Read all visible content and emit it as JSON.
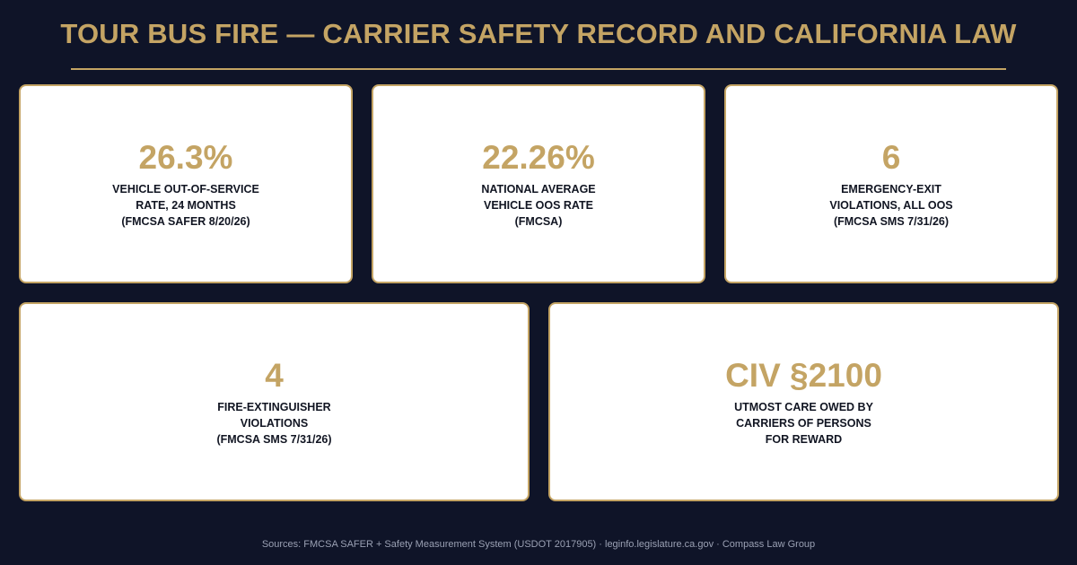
{
  "title": "TOUR BUS FIRE — CARRIER SAFETY RECORD AND CALIFORNIA LAW",
  "cards": [
    {
      "value": "26.3%",
      "label": "VEHICLE OUT-OF-SERVICE\nRATE, 24 MONTHS\n(FMCSA SAFER 8/20/26)"
    },
    {
      "value": "22.26%",
      "label": "NATIONAL AVERAGE\nVEHICLE OOS RATE\n(FMCSA)"
    },
    {
      "value": "6",
      "label": "EMERGENCY-EXIT\nVIOLATIONS, ALL OOS\n(FMCSA SMS 7/31/26)"
    },
    {
      "value": "4",
      "label": "FIRE-EXTINGUISHER\nVIOLATIONS\n(FMCSA SMS 7/31/26)"
    },
    {
      "value": "CIV §2100",
      "label": "UTMOST CARE OWED BY\nCARRIERS OF PERSONS\nFOR REWARD"
    }
  ],
  "footer": "Sources: FMCSA SAFER + Safety Measurement System (USDOT 2017905) · leginfo.legislature.ca.gov · Compass Law Group"
}
